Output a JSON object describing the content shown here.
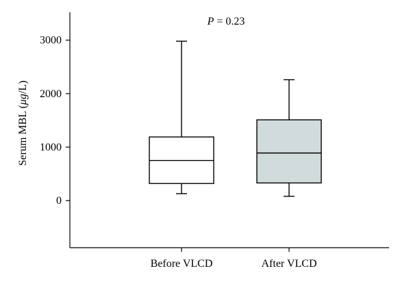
{
  "chart_data": {
    "type": "box",
    "categories": [
      "Before VLCD",
      "After VLCD"
    ],
    "boxes": [
      {
        "category": "Before VLCD",
        "min": 130,
        "q1": 320,
        "median": 750,
        "q3": 1190,
        "max": 2980,
        "fill": "#ffffff"
      },
      {
        "category": "After VLCD",
        "min": 80,
        "q1": 330,
        "median": 890,
        "q3": 1510,
        "max": 2260,
        "fill": "#d1dbdb"
      }
    ],
    "ylabel_prefix": "Serum MBL (",
    "ylabel_unit": "μg",
    "ylabel_suffix": "/L)",
    "ylim": [
      -880,
      3520
    ],
    "yticks": [
      0,
      1000,
      2000,
      3000
    ],
    "ytick_labels": [
      "0",
      "1000",
      "2000",
      "3000"
    ],
    "annotation": {
      "p_symbol": "P",
      "p_text": " = 0.23"
    },
    "grid": false,
    "legend": "none"
  }
}
